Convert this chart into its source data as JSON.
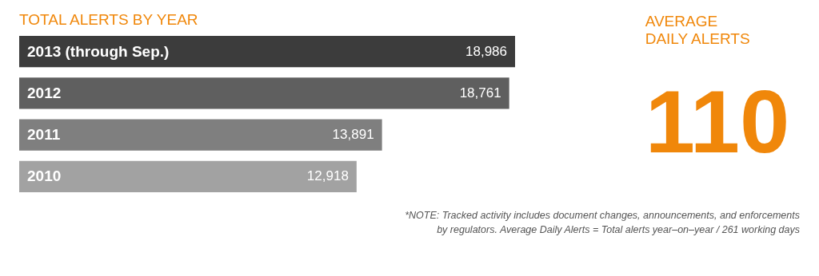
{
  "chart_data": [
    {
      "type": "bar",
      "orientation": "horizontal",
      "title": "TOTAL ALERTS BY YEAR",
      "categories": [
        "2013 (through Sep.)",
        "2012",
        "2011",
        "2010"
      ],
      "values": [
        18986,
        18761,
        13891,
        12918
      ],
      "colors": [
        "#3c3c3c",
        "#5f5f5f",
        "#7f7f7f",
        "#a2a2a2"
      ],
      "value_labels": [
        "18,986",
        "18,761",
        "13,891",
        "12,918"
      ],
      "annotations": [
        "*NOTE: Tracked activity includes document changes, announcements, and enforcements",
        "by regulators. Average Daily Alerts = Total alerts year–on–year / 261 working days"
      ]
    },
    {
      "type": "other",
      "title": "AVERAGE DAILY ALERTS",
      "annotations": [
        "110"
      ]
    }
  ]
}
